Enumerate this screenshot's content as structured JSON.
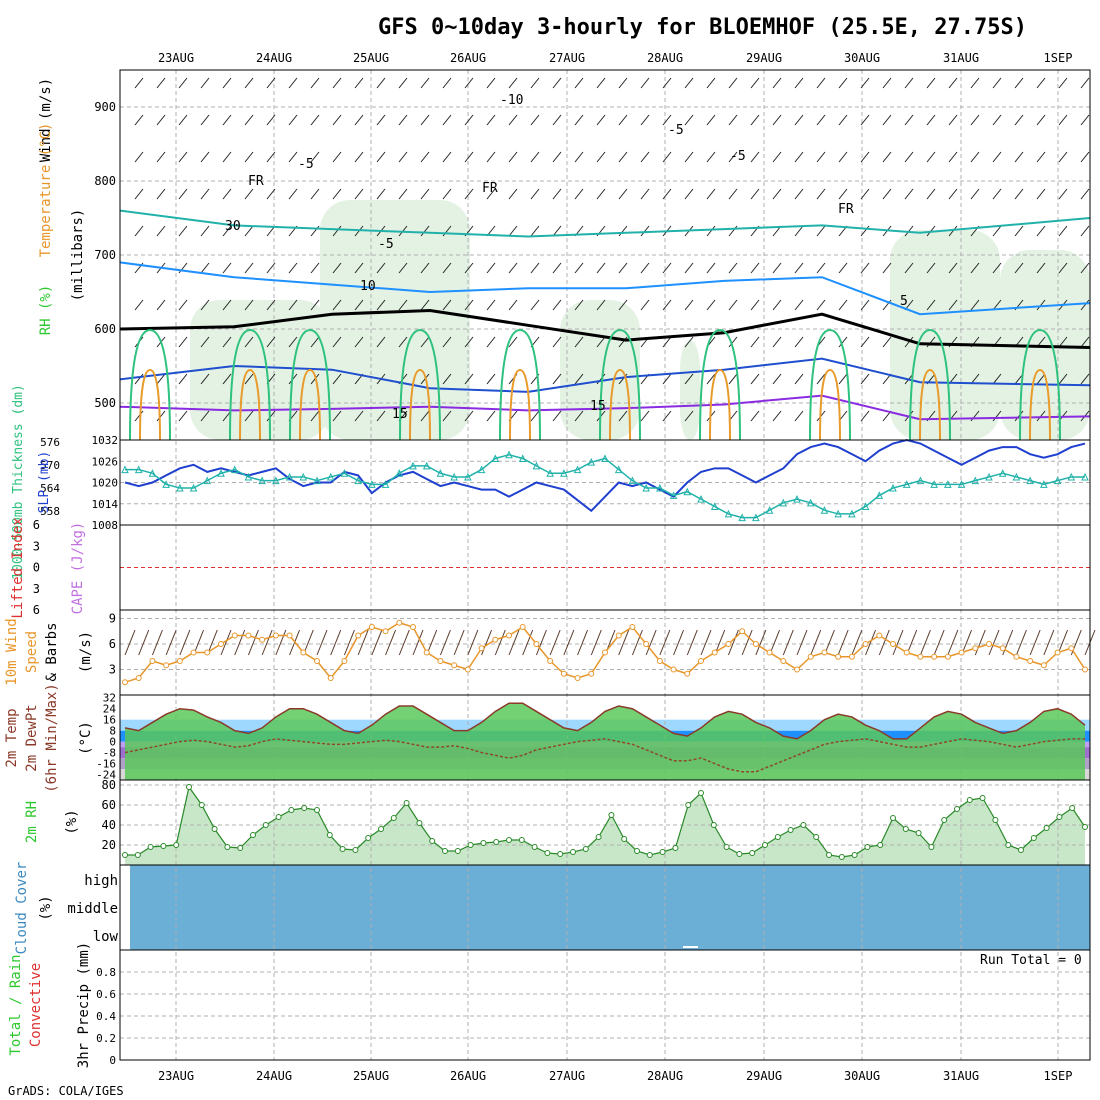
{
  "title": "GFS 0~10day 3-hourly for BLOEMHOF (25.5E, 27.75S)",
  "footer": "GrADS: COLA/IGES",
  "x_labels": [
    "23AUG",
    "24AUG",
    "25AUG",
    "26AUG",
    "27AUG",
    "28AUG",
    "29AUG",
    "30AUG",
    "31AUG",
    "1SEP"
  ],
  "panel_labels": {
    "upper_wind": "Wind (m/s)",
    "upper_temp": "Temperature (°C)",
    "upper_rh": "RH (%)",
    "upper_unit": "(millibars)",
    "slp": "SLP (mb)",
    "thickness": "1000-500mb Thickness (dm)",
    "li": "Lifted Index",
    "cape": "CAPE (J/kg)",
    "wind10a": "10m Wind",
    "wind10b": "Speed",
    "wind10c": "& Barbs",
    "wind10u": "(m/s)",
    "temp2a": "2m Temp",
    "temp2b": "2m DewPt",
    "temp2c": "(6hr Min/Max)",
    "temp2u": "(°C)",
    "rh2": "2m RH",
    "rh2u": "(%)",
    "cloud": "Cloud Cover",
    "cloudu": "(%)",
    "precip_a": "Total / Rain",
    "precip_b": "Convective",
    "precip_u": "3hr Precip (mm)",
    "run_total": "Run Total = 0"
  },
  "cloud_levels": [
    "high",
    "middle",
    "low"
  ],
  "contour_labels": [
    "-10",
    "-5",
    "-5",
    "FR",
    "FR",
    "FR",
    "-5",
    "5",
    "10",
    "15",
    "15",
    "-5",
    "30"
  ],
  "colors": {
    "temp_minus10": "#8a2be2",
    "temp_minus5": "#1f4fcf",
    "temp_5": "#1e90ff",
    "temp_10": "#20b2aa",
    "temp_15": "#2ec27e",
    "temp_20": "#e89b2a",
    "temp_25": "#d2117a",
    "slp_line": "#1f3fcf",
    "thickness_line": "#20b2aa",
    "wind_speed": "#e8962a",
    "rh_fill": "#2ec82e",
    "cloud_fill": "#6baed6",
    "freezing": "#000000"
  },
  "chart_data": [
    {
      "type": "line",
      "panel": "Upper-air temperature / wind / RH cross-section",
      "ylabel": "(millibars)",
      "y_ticks": [
        500,
        600,
        700,
        800,
        900
      ],
      "ylim": [
        450,
        950
      ],
      "x": [
        "23AUG",
        "24AUG",
        "25AUG",
        "26AUG",
        "27AUG",
        "28AUG",
        "29AUG",
        "30AUG",
        "31AUG",
        "1SEP"
      ],
      "series": [
        {
          "name": "-10",
          "values": [
            495,
            490,
            492,
            495,
            490,
            493,
            498,
            510,
            478,
            482
          ]
        },
        {
          "name": "-5",
          "values": [
            532,
            550,
            545,
            520,
            515,
            535,
            545,
            560,
            528,
            524
          ]
        },
        {
          "name": "FR",
          "values": [
            600,
            603,
            620,
            625,
            605,
            585,
            595,
            620,
            580,
            575
          ]
        },
        {
          "name": "5",
          "values": [
            690,
            670,
            660,
            650,
            655,
            655,
            665,
            670,
            620,
            635
          ]
        },
        {
          "name": "10",
          "values": [
            760,
            740,
            735,
            730,
            725,
            730,
            735,
            740,
            730,
            750
          ]
        }
      ]
    },
    {
      "type": "line",
      "panel": "SLP / 1000-500mb thickness",
      "y_ticks_left": [
        558,
        564,
        570,
        576
      ],
      "y_ticks_right": [
        1008,
        1014,
        1020,
        1026,
        1032
      ],
      "ylim": [
        1008,
        1032
      ],
      "series": [
        {
          "name": "SLP (mb)",
          "values": [
            1020,
            1019,
            1020,
            1022,
            1024,
            1025,
            1023,
            1024,
            1023,
            1022,
            1023,
            1024,
            1021,
            1019,
            1020,
            1020,
            1023,
            1022,
            1017,
            1020,
            1022,
            1023,
            1021,
            1019,
            1020,
            1019,
            1018,
            1018,
            1016,
            1018,
            1020,
            1019,
            1018,
            1015,
            1012,
            1016,
            1020,
            1019,
            1020,
            1018,
            1016,
            1020,
            1023,
            1024,
            1024,
            1022,
            1020,
            1022,
            1024,
            1028,
            1030,
            1031,
            1030,
            1028,
            1026,
            1029,
            1031,
            1032,
            1031,
            1029,
            1027,
            1025,
            1027,
            1029,
            1030,
            1030,
            1028,
            1027,
            1028,
            1030,
            1031
          ]
        },
        {
          "name": "Thickness (dm)",
          "values": [
            570,
            570,
            569,
            566,
            565,
            565,
            567,
            569,
            570,
            568,
            567,
            567,
            568,
            568,
            567,
            568,
            569,
            567,
            566,
            566,
            569,
            571,
            571,
            569,
            568,
            568,
            570,
            573,
            574,
            573,
            571,
            569,
            569,
            570,
            572,
            573,
            570,
            567,
            565,
            565,
            563,
            564,
            562,
            560,
            558,
            557,
            557,
            559,
            561,
            562,
            561,
            559,
            558,
            558,
            560,
            563,
            565,
            566,
            567,
            566,
            566,
            566,
            567,
            568,
            569,
            568,
            567,
            566,
            567,
            568,
            568
          ]
        }
      ]
    },
    {
      "type": "line",
      "panel": "Lifted Index / CAPE",
      "y_ticks": [
        -6,
        -3,
        0,
        3,
        6
      ],
      "ylim": [
        -6,
        6
      ],
      "series": []
    },
    {
      "type": "line",
      "panel": "10m Wind Speed & Barbs",
      "ylabel": "(m/s)",
      "y_ticks": [
        3,
        6,
        9
      ],
      "ylim": [
        0,
        10
      ],
      "series": [
        {
          "name": "10m Wind Speed",
          "values": [
            1.5,
            2,
            4,
            3.5,
            4,
            5,
            5,
            6,
            7,
            7,
            6.5,
            7,
            7,
            5,
            4,
            2,
            4,
            7,
            8,
            7.5,
            8.5,
            8,
            5,
            4,
            3.5,
            3,
            5.5,
            6.5,
            7,
            8,
            6,
            4,
            2.5,
            2,
            2.5,
            5,
            7,
            8,
            6,
            4,
            3,
            2.5,
            4,
            5,
            6,
            7.5,
            6,
            5,
            4,
            3,
            4.5,
            5,
            4.5,
            4.5,
            6,
            7,
            6,
            5,
            4.5,
            4.5,
            4.5,
            5,
            5.5,
            6,
            5.5,
            4.5,
            4,
            3.5,
            5,
            5.5,
            3
          ]
        }
      ]
    },
    {
      "type": "area",
      "panel": "2m Temp / 2m DewPt (6hr Min/Max)",
      "ylabel": "(°C)",
      "y_ticks": [
        -24,
        -16,
        -8,
        0,
        8,
        16,
        24,
        32
      ],
      "ylim": [
        -28,
        34
      ],
      "series": [
        {
          "name": "2m Temp",
          "values": [
            10,
            8,
            14,
            20,
            24,
            23,
            18,
            14,
            8,
            6,
            10,
            18,
            24,
            24,
            20,
            14,
            8,
            6,
            12,
            20,
            26,
            26,
            20,
            14,
            8,
            8,
            14,
            22,
            28,
            28,
            22,
            16,
            10,
            8,
            14,
            22,
            26,
            24,
            18,
            12,
            6,
            4,
            10,
            18,
            22,
            20,
            14,
            10,
            4,
            2,
            8,
            16,
            20,
            18,
            12,
            8,
            2,
            2,
            10,
            18,
            22,
            20,
            14,
            10,
            6,
            8,
            14,
            22,
            24,
            20,
            12
          ]
        },
        {
          "name": "2m DewPt",
          "values": [
            -8,
            -6,
            -4,
            -2,
            0,
            1,
            0,
            -2,
            -4,
            -3,
            0,
            2,
            1,
            0,
            -1,
            -2,
            -2,
            -1,
            0,
            1,
            0,
            -2,
            -4,
            -4,
            -3,
            -5,
            -8,
            -10,
            -12,
            -10,
            -6,
            -4,
            -2,
            0,
            1,
            2,
            0,
            -2,
            -6,
            -10,
            -14,
            -14,
            -12,
            -16,
            -20,
            -22,
            -22,
            -18,
            -14,
            -10,
            -6,
            -2,
            0,
            1,
            2,
            0,
            -2,
            -4,
            -4,
            -2,
            0,
            2,
            1,
            0,
            -2,
            -4,
            -2,
            0,
            1,
            2,
            2
          ]
        }
      ]
    },
    {
      "type": "area",
      "panel": "2m RH",
      "ylabel": "(%)",
      "y_ticks": [
        20,
        40,
        60,
        80
      ],
      "ylim": [
        0,
        85
      ],
      "series": [
        {
          "name": "2m RH",
          "values": [
            10,
            10,
            18,
            19,
            20,
            78,
            60,
            36,
            18,
            17,
            30,
            40,
            48,
            55,
            57,
            55,
            30,
            16,
            15,
            27,
            36,
            47,
            62,
            42,
            24,
            14,
            14,
            20,
            22,
            23,
            25,
            25,
            18,
            12,
            11,
            13,
            16,
            28,
            50,
            26,
            14,
            10,
            13,
            17,
            60,
            72,
            40,
            18,
            11,
            12,
            20,
            28,
            35,
            40,
            28,
            10,
            8,
            10,
            18,
            20,
            47,
            36,
            32,
            18,
            45,
            56,
            65,
            67,
            45,
            20,
            15,
            27,
            37,
            48,
            57,
            38
          ]
        }
      ]
    },
    {
      "type": "area",
      "panel": "Cloud Cover",
      "ylabel": "(%)",
      "categories": [
        "high",
        "middle",
        "low"
      ],
      "values": [
        100,
        100,
        100
      ]
    },
    {
      "type": "bar",
      "panel": "3hr Precip (mm)",
      "y_ticks": [
        0,
        0.2,
        0.4,
        0.6,
        0.8
      ],
      "ylim": [
        0,
        1
      ],
      "annotation": "Run Total = 0",
      "values": []
    }
  ]
}
